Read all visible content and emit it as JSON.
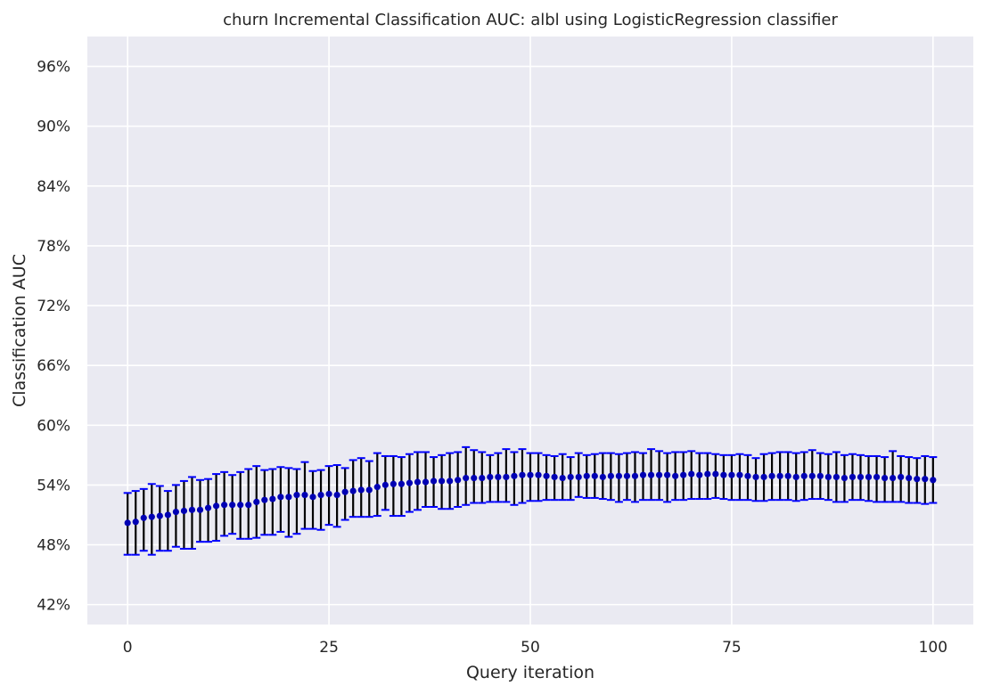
{
  "chart_data": {
    "type": "scatter",
    "title": "churn Incremental Classification AUC: albl using LogisticRegression classifier",
    "xlabel": "Query iteration",
    "ylabel": "Classification AUC",
    "xlim": [
      -5,
      105
    ],
    "ylim": [
      40,
      99
    ],
    "xticks": [
      0,
      25,
      50,
      75,
      100
    ],
    "yticks": [
      42,
      48,
      54,
      60,
      66,
      72,
      78,
      84,
      90,
      96
    ],
    "ytick_labels": [
      "42%",
      "48%",
      "54%",
      "60%",
      "66%",
      "72%",
      "78%",
      "84%",
      "90%",
      "96%"
    ],
    "grid": true,
    "background": "#eaeaf2",
    "grid_color": "#ffffff",
    "marker_color": "#0000b4",
    "errorbar_color": "#000000",
    "cap_color": "#0000ff",
    "x": [
      0,
      1,
      2,
      3,
      4,
      5,
      6,
      7,
      8,
      9,
      10,
      11,
      12,
      13,
      14,
      15,
      16,
      17,
      18,
      19,
      20,
      21,
      22,
      23,
      24,
      25,
      26,
      27,
      28,
      29,
      30,
      31,
      32,
      33,
      34,
      35,
      36,
      37,
      38,
      39,
      40,
      41,
      42,
      43,
      44,
      45,
      46,
      47,
      48,
      49,
      50,
      51,
      52,
      53,
      54,
      55,
      56,
      57,
      58,
      59,
      60,
      61,
      62,
      63,
      64,
      65,
      66,
      67,
      68,
      69,
      70,
      71,
      72,
      73,
      74,
      75,
      76,
      77,
      78,
      79,
      80,
      81,
      82,
      83,
      84,
      85,
      86,
      87,
      88,
      89,
      90,
      91,
      92,
      93,
      94,
      95,
      96,
      97,
      98,
      99,
      100
    ],
    "y": [
      50.2,
      50.3,
      50.7,
      50.8,
      50.9,
      51.0,
      51.3,
      51.4,
      51.5,
      51.5,
      51.7,
      51.9,
      52.0,
      52.0,
      52.0,
      52.0,
      52.3,
      52.5,
      52.6,
      52.8,
      52.8,
      53.0,
      53.0,
      52.8,
      53.0,
      53.1,
      53.0,
      53.3,
      53.4,
      53.5,
      53.5,
      53.8,
      54.0,
      54.1,
      54.1,
      54.2,
      54.3,
      54.3,
      54.4,
      54.4,
      54.4,
      54.5,
      54.7,
      54.7,
      54.7,
      54.8,
      54.8,
      54.8,
      54.9,
      55.0,
      55.0,
      55.0,
      54.9,
      54.8,
      54.7,
      54.8,
      54.8,
      54.9,
      54.9,
      54.8,
      54.9,
      54.9,
      54.9,
      54.9,
      55.0,
      55.0,
      55.0,
      55.0,
      54.9,
      55.0,
      55.1,
      55.0,
      55.1,
      55.1,
      55.0,
      55.0,
      55.0,
      54.9,
      54.8,
      54.8,
      54.9,
      54.9,
      54.9,
      54.8,
      54.9,
      54.9,
      54.9,
      54.8,
      54.8,
      54.7,
      54.8,
      54.8,
      54.8,
      54.8,
      54.7,
      54.7,
      54.8,
      54.7,
      54.6,
      54.6,
      54.5
    ],
    "y_low": [
      47.0,
      47.0,
      47.4,
      47.0,
      47.4,
      47.4,
      47.8,
      47.6,
      47.6,
      48.3,
      48.3,
      48.4,
      48.9,
      49.1,
      48.6,
      48.6,
      48.7,
      49.0,
      49.0,
      49.3,
      48.8,
      49.1,
      49.6,
      49.6,
      49.5,
      50.0,
      49.8,
      50.5,
      50.8,
      50.8,
      50.8,
      50.9,
      51.5,
      50.9,
      50.9,
      51.3,
      51.5,
      51.8,
      51.8,
      51.6,
      51.6,
      51.8,
      52.0,
      52.2,
      52.2,
      52.3,
      52.3,
      52.3,
      52.0,
      52.2,
      52.4,
      52.4,
      52.5,
      52.5,
      52.5,
      52.5,
      52.8,
      52.7,
      52.7,
      52.6,
      52.5,
      52.3,
      52.5,
      52.3,
      52.5,
      52.5,
      52.5,
      52.3,
      52.5,
      52.5,
      52.6,
      52.6,
      52.6,
      52.7,
      52.6,
      52.5,
      52.5,
      52.5,
      52.4,
      52.4,
      52.5,
      52.5,
      52.5,
      52.4,
      52.5,
      52.6,
      52.6,
      52.5,
      52.3,
      52.3,
      52.5,
      52.5,
      52.4,
      52.3,
      52.3,
      52.3,
      52.3,
      52.2,
      52.2,
      52.1,
      52.2
    ],
    "y_high": [
      53.2,
      53.4,
      53.6,
      54.1,
      53.9,
      53.4,
      54.0,
      54.4,
      54.8,
      54.5,
      54.6,
      55.1,
      55.3,
      55.0,
      55.3,
      55.6,
      55.9,
      55.5,
      55.6,
      55.8,
      55.7,
      55.6,
      56.3,
      55.4,
      55.5,
      55.9,
      56.0,
      55.7,
      56.5,
      56.7,
      56.4,
      57.2,
      56.9,
      56.9,
      56.8,
      57.1,
      57.3,
      57.3,
      56.8,
      57.0,
      57.2,
      57.3,
      57.8,
      57.5,
      57.3,
      57.0,
      57.2,
      57.6,
      57.3,
      57.6,
      57.2,
      57.2,
      57.0,
      56.9,
      57.1,
      56.8,
      57.2,
      57.0,
      57.1,
      57.2,
      57.2,
      57.1,
      57.2,
      57.3,
      57.2,
      57.6,
      57.4,
      57.2,
      57.3,
      57.3,
      57.4,
      57.2,
      57.2,
      57.1,
      57.0,
      57.0,
      57.1,
      57.0,
      56.7,
      57.1,
      57.2,
      57.3,
      57.3,
      57.2,
      57.3,
      57.5,
      57.2,
      57.1,
      57.3,
      57.0,
      57.1,
      57.0,
      56.9,
      56.9,
      56.8,
      57.4,
      56.9,
      56.8,
      56.7,
      56.9,
      56.8
    ]
  }
}
